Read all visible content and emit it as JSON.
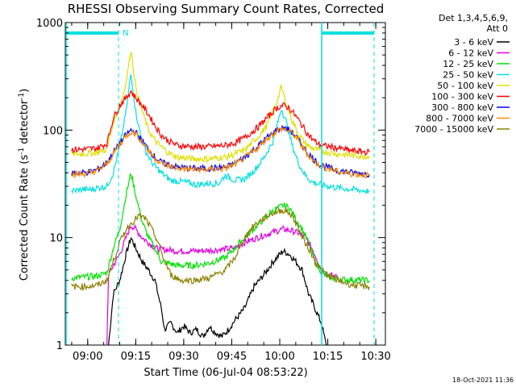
{
  "chart_data": {
    "type": "line",
    "title": "RHESSI Observing Summary Count Rates, Corrected",
    "xlabel": "Start Time (06-Jul-04 08:53:22)",
    "ylabel_main": "Corrected Count Rate (s",
    "ylabel_sup1": "-1",
    "ylabel_mid": " detector",
    "ylabel_sup2": "-1",
    "ylabel_end": ")",
    "yscale": "log",
    "ylim": [
      1,
      1000
    ],
    "xlim_minutes": [
      0,
      100
    ],
    "x_tick_labels": [
      "09:00",
      "09:15",
      "09:30",
      "09:45",
      "10:00",
      "10:15",
      "10:30"
    ],
    "x_tick_minutes": [
      7,
      22,
      37,
      52,
      67,
      82,
      97
    ],
    "y_tick_labels": [
      "1",
      "10",
      "100",
      "1000"
    ],
    "y_tick_values": [
      1,
      10,
      100,
      1000
    ],
    "legend_header": [
      "Det 1,3,4,5,6,9,",
      "Att 0"
    ],
    "flag_label": "N",
    "timestamp": "18-Oct-2021 11:36",
    "series": [
      {
        "name": "3 - 6 keV",
        "color": "#000000",
        "points": [
          [
            13.5,
            1
          ],
          [
            15,
            3
          ],
          [
            17,
            4
          ],
          [
            19,
            7
          ],
          [
            20.5,
            10
          ],
          [
            22,
            8
          ],
          [
            24,
            6
          ],
          [
            26,
            5
          ],
          [
            28,
            4
          ],
          [
            30,
            2.2
          ],
          [
            31,
            1.4
          ],
          [
            33,
            1.6
          ],
          [
            35,
            1.3
          ],
          [
            37,
            1.5
          ],
          [
            39,
            1.3
          ],
          [
            41,
            1.4
          ],
          [
            43,
            1.2
          ],
          [
            45,
            1.5
          ],
          [
            47,
            1.3
          ],
          [
            49,
            1.2
          ],
          [
            51,
            1.4
          ],
          [
            53,
            1.7
          ],
          [
            56,
            2.2
          ],
          [
            59,
            3.5
          ],
          [
            62,
            4.5
          ],
          [
            65,
            6
          ],
          [
            68,
            7.5
          ],
          [
            70,
            7
          ],
          [
            72,
            6
          ],
          [
            74,
            5
          ],
          [
            76,
            3
          ],
          [
            78,
            2.2
          ],
          [
            80,
            1.6
          ],
          [
            81.5,
            1
          ]
        ]
      },
      {
        "name": "6 - 12 keV",
        "color": "#e000e0",
        "points": [
          [
            13,
            1
          ],
          [
            13.5,
            4.5
          ],
          [
            15,
            5.5
          ],
          [
            17,
            7
          ],
          [
            19,
            10
          ],
          [
            20.5,
            13
          ],
          [
            22,
            12
          ],
          [
            24,
            10
          ],
          [
            26,
            9
          ],
          [
            28,
            8
          ],
          [
            30,
            7.8
          ],
          [
            35,
            7.5
          ],
          [
            40,
            7.5
          ],
          [
            45,
            7.6
          ],
          [
            50,
            7.8
          ],
          [
            53,
            8
          ],
          [
            56,
            9
          ],
          [
            60,
            10
          ],
          [
            64,
            11
          ],
          [
            68,
            12
          ],
          [
            71,
            11.5
          ],
          [
            73,
            11
          ],
          [
            75,
            10
          ],
          [
            77,
            8
          ],
          [
            79,
            6
          ],
          [
            80,
            5
          ],
          [
            82,
            4.5
          ],
          [
            85,
            4.3
          ]
        ]
      },
      {
        "name": "12 - 25 keV",
        "color": "#00e000",
        "points": [
          [
            2,
            4.2
          ],
          [
            6,
            4.3
          ],
          [
            10,
            4.4
          ],
          [
            13,
            4.7
          ],
          [
            15,
            8
          ],
          [
            17,
            12
          ],
          [
            19,
            25
          ],
          [
            20.5,
            40
          ],
          [
            22,
            25
          ],
          [
            24,
            14
          ],
          [
            26,
            10
          ],
          [
            28,
            8
          ],
          [
            30,
            6
          ],
          [
            35,
            5.5
          ],
          [
            40,
            5.5
          ],
          [
            45,
            5.8
          ],
          [
            50,
            6.5
          ],
          [
            53,
            8
          ],
          [
            56,
            10
          ],
          [
            60,
            13
          ],
          [
            64,
            17
          ],
          [
            68,
            20
          ],
          [
            70,
            19
          ],
          [
            72,
            15
          ],
          [
            74,
            12
          ],
          [
            76,
            9
          ],
          [
            78,
            6
          ],
          [
            80,
            4.8
          ],
          [
            82,
            4.3
          ],
          [
            85,
            4.1
          ],
          [
            95,
            4
          ]
        ]
      },
      {
        "name": "25 - 50 keV",
        "color": "#00e0e0",
        "points": [
          [
            2,
            27
          ],
          [
            5,
            28
          ],
          [
            8,
            28
          ],
          [
            10,
            29
          ],
          [
            13,
            30
          ],
          [
            15,
            40
          ],
          [
            17,
            70
          ],
          [
            19,
            150
          ],
          [
            20.5,
            330
          ],
          [
            22,
            150
          ],
          [
            23.5,
            90
          ],
          [
            25,
            65
          ],
          [
            27,
            50
          ],
          [
            30,
            40
          ],
          [
            33,
            34
          ],
          [
            37,
            33
          ],
          [
            41,
            31
          ],
          [
            45,
            32
          ],
          [
            48,
            32
          ],
          [
            50,
            38
          ],
          [
            53,
            34
          ],
          [
            56,
            35
          ],
          [
            59,
            42
          ],
          [
            62,
            55
          ],
          [
            65,
            80
          ],
          [
            67.5,
            160
          ],
          [
            69,
            120
          ],
          [
            71,
            70
          ],
          [
            73,
            48
          ],
          [
            75,
            38
          ],
          [
            77,
            33
          ],
          [
            80,
            31
          ],
          [
            85,
            29
          ],
          [
            90,
            28
          ],
          [
            95,
            27
          ]
        ]
      },
      {
        "name": "50 - 100 keV",
        "color": "#e0e000",
        "points": [
          [
            2,
            60
          ],
          [
            5,
            60
          ],
          [
            8,
            61
          ],
          [
            10,
            62
          ],
          [
            13,
            66
          ],
          [
            15,
            120
          ],
          [
            17,
            160
          ],
          [
            19,
            280
          ],
          [
            20.5,
            560
          ],
          [
            22,
            250
          ],
          [
            24,
            150
          ],
          [
            26,
            100
          ],
          [
            28,
            80
          ],
          [
            30,
            70
          ],
          [
            32,
            62
          ],
          [
            35,
            56
          ],
          [
            40,
            54
          ],
          [
            45,
            54
          ],
          [
            50,
            56
          ],
          [
            53,
            60
          ],
          [
            56,
            65
          ],
          [
            60,
            85
          ],
          [
            63,
            110
          ],
          [
            66,
            180
          ],
          [
            67.5,
            250
          ],
          [
            69,
            180
          ],
          [
            71,
            120
          ],
          [
            73,
            90
          ],
          [
            75,
            75
          ],
          [
            77,
            68
          ],
          [
            80,
            64
          ],
          [
            85,
            60
          ],
          [
            90,
            58
          ],
          [
            95,
            57
          ]
        ]
      },
      {
        "name": "100 - 300 keV",
        "color": "#ff0000",
        "points": [
          [
            2,
            66
          ],
          [
            5,
            66
          ],
          [
            8,
            67
          ],
          [
            10,
            68
          ],
          [
            13,
            75
          ],
          [
            15,
            130
          ],
          [
            17,
            170
          ],
          [
            19,
            200
          ],
          [
            20.5,
            230
          ],
          [
            22,
            200
          ],
          [
            24,
            170
          ],
          [
            26,
            140
          ],
          [
            28,
            110
          ],
          [
            30,
            90
          ],
          [
            32,
            80
          ],
          [
            35,
            72
          ],
          [
            40,
            70
          ],
          [
            45,
            70
          ],
          [
            50,
            72
          ],
          [
            53,
            76
          ],
          [
            56,
            85
          ],
          [
            60,
            105
          ],
          [
            63,
            130
          ],
          [
            66,
            160
          ],
          [
            68,
            170
          ],
          [
            70,
            160
          ],
          [
            72,
            135
          ],
          [
            74,
            110
          ],
          [
            76,
            90
          ],
          [
            78,
            78
          ],
          [
            80,
            72
          ],
          [
            85,
            68
          ],
          [
            90,
            64
          ],
          [
            95,
            62
          ]
        ]
      },
      {
        "name": "300 - 800 keV",
        "color": "#0000ff",
        "points": [
          [
            2,
            40
          ],
          [
            5,
            40
          ],
          [
            8,
            41
          ],
          [
            10,
            43
          ],
          [
            13,
            50
          ],
          [
            15,
            62
          ],
          [
            17,
            75
          ],
          [
            19,
            90
          ],
          [
            20.5,
            100
          ],
          [
            22,
            95
          ],
          [
            24,
            80
          ],
          [
            26,
            66
          ],
          [
            28,
            56
          ],
          [
            30,
            50
          ],
          [
            35,
            45
          ],
          [
            40,
            44
          ],
          [
            45,
            44
          ],
          [
            50,
            45
          ],
          [
            53,
            49
          ],
          [
            56,
            56
          ],
          [
            60,
            70
          ],
          [
            63,
            85
          ],
          [
            66,
            100
          ],
          [
            68,
            105
          ],
          [
            70,
            100
          ],
          [
            72,
            88
          ],
          [
            74,
            72
          ],
          [
            76,
            60
          ],
          [
            78,
            52
          ],
          [
            80,
            47
          ],
          [
            85,
            42
          ],
          [
            90,
            40
          ],
          [
            95,
            39
          ]
        ]
      },
      {
        "name": "800 - 7000 keV",
        "color": "#ff8c00",
        "points": [
          [
            2,
            39
          ],
          [
            5,
            39
          ],
          [
            8,
            40
          ],
          [
            10,
            42
          ],
          [
            13,
            48
          ],
          [
            15,
            60
          ],
          [
            17,
            73
          ],
          [
            19,
            88
          ],
          [
            20.5,
            97
          ],
          [
            22,
            92
          ],
          [
            24,
            78
          ],
          [
            26,
            64
          ],
          [
            28,
            55
          ],
          [
            30,
            49
          ],
          [
            35,
            44
          ],
          [
            40,
            43
          ],
          [
            45,
            43
          ],
          [
            50,
            44
          ],
          [
            53,
            48
          ],
          [
            56,
            55
          ],
          [
            60,
            68
          ],
          [
            63,
            83
          ],
          [
            66,
            98
          ],
          [
            68,
            103
          ],
          [
            70,
            98
          ],
          [
            72,
            86
          ],
          [
            74,
            70
          ],
          [
            76,
            58
          ],
          [
            78,
            50
          ],
          [
            80,
            46
          ],
          [
            85,
            41
          ],
          [
            90,
            39
          ],
          [
            95,
            38
          ]
        ]
      },
      {
        "name": "7000 - 15000 keV",
        "color": "#8b8000",
        "points": [
          [
            2,
            3.5
          ],
          [
            6,
            3.5
          ],
          [
            10,
            3.6
          ],
          [
            13,
            4
          ],
          [
            15,
            6
          ],
          [
            17,
            9
          ],
          [
            19,
            12
          ],
          [
            21,
            14
          ],
          [
            23,
            16
          ],
          [
            25,
            15
          ],
          [
            27,
            12
          ],
          [
            29,
            9
          ],
          [
            31,
            6
          ],
          [
            33,
            4.5
          ],
          [
            36,
            4
          ],
          [
            40,
            4
          ],
          [
            45,
            4.2
          ],
          [
            50,
            5
          ],
          [
            53,
            6.5
          ],
          [
            56,
            10
          ],
          [
            59,
            13
          ],
          [
            62,
            15
          ],
          [
            65,
            17
          ],
          [
            68,
            18
          ],
          [
            70,
            17
          ],
          [
            72,
            14
          ],
          [
            74,
            10
          ],
          [
            76,
            8
          ],
          [
            78,
            6
          ],
          [
            80,
            5
          ],
          [
            82,
            4.5
          ],
          [
            85,
            4
          ],
          [
            90,
            3.6
          ],
          [
            95,
            3.5
          ]
        ]
      }
    ]
  }
}
